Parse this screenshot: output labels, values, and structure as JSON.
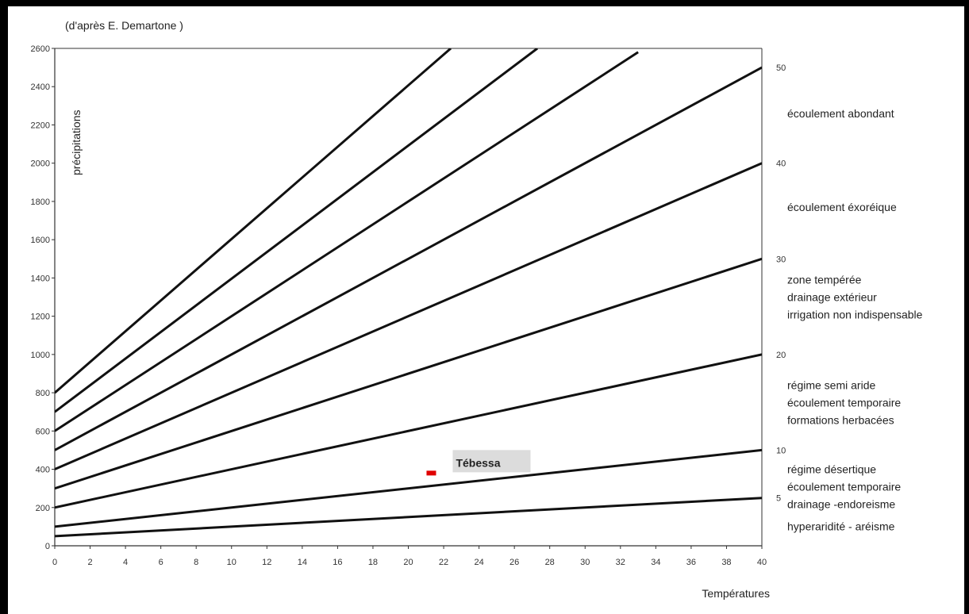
{
  "chart_data": {
    "type": "line",
    "title": "(d'après E. Demartone )",
    "xlabel": "Températures",
    "ylabel": "précipitations",
    "xlim": [
      0,
      40
    ],
    "ylim": [
      0,
      2600
    ],
    "x_ticks": [
      "0",
      "2",
      "4",
      "6",
      "8",
      "10",
      "12",
      "14",
      "16",
      "18",
      "20",
      "22",
      "24",
      "26",
      "28",
      "30",
      "32",
      "34",
      "36",
      "38",
      "40"
    ],
    "y_ticks": [
      "0",
      "200",
      "400",
      "600",
      "800",
      "1000",
      "1200",
      "1400",
      "1600",
      "1800",
      "2000",
      "2200",
      "2400",
      "2600"
    ],
    "series": [
      {
        "x": [
          0,
          40
        ],
        "values": [
          50,
          250
        ]
      },
      {
        "x": [
          0,
          40
        ],
        "values": [
          100,
          500
        ]
      },
      {
        "x": [
          0,
          40
        ],
        "values": [
          200,
          1000
        ]
      },
      {
        "x": [
          0,
          40
        ],
        "values": [
          300,
          1500
        ]
      },
      {
        "x": [
          0,
          40
        ],
        "values": [
          400,
          2000
        ]
      },
      {
        "x": [
          0,
          40
        ],
        "values": [
          500,
          2500
        ]
      },
      {
        "x": [
          0,
          33
        ],
        "values": [
          600,
          2580
        ]
      },
      {
        "x": [
          0,
          27.3
        ],
        "values": [
          700,
          2600
        ]
      },
      {
        "x": [
          0,
          22.4
        ],
        "values": [
          800,
          2600
        ]
      }
    ],
    "right_axis_labels": [
      {
        "value": "5",
        "y": 250
      },
      {
        "value": "10",
        "y": 500
      },
      {
        "value": "20",
        "y": 1000
      },
      {
        "value": "30",
        "y": 1500
      },
      {
        "value": "40",
        "y": 2000
      },
      {
        "value": "50",
        "y": 2500
      }
    ],
    "zones": [
      {
        "lines": [
          "écoulement abondant"
        ],
        "y": 2240
      },
      {
        "lines": [
          "écoulement  éxoréique"
        ],
        "y": 1750
      },
      {
        "lines": [
          "zone tempérée",
          "drainage extérieur",
          "irrigation non indispensable"
        ],
        "y": 1370
      },
      {
        "lines": [
          "régime semi aride",
          "écoulement temporaire",
          "formations herbacées"
        ],
        "y": 820
      },
      {
        "lines": [
          "régime désertique",
          "écoulement temporaire",
          "drainage -endoreisme"
        ],
        "y": 380
      },
      {
        "lines": [
          "hyperaridité - aréisme"
        ],
        "y": 80
      }
    ],
    "point": {
      "label": "Tébessa",
      "x": 21.3,
      "y": 380
    },
    "colors": {
      "line": "#111111",
      "point": "#e00000",
      "point_label": "#e00000",
      "point_label_bg": "#dcdcdc"
    }
  }
}
